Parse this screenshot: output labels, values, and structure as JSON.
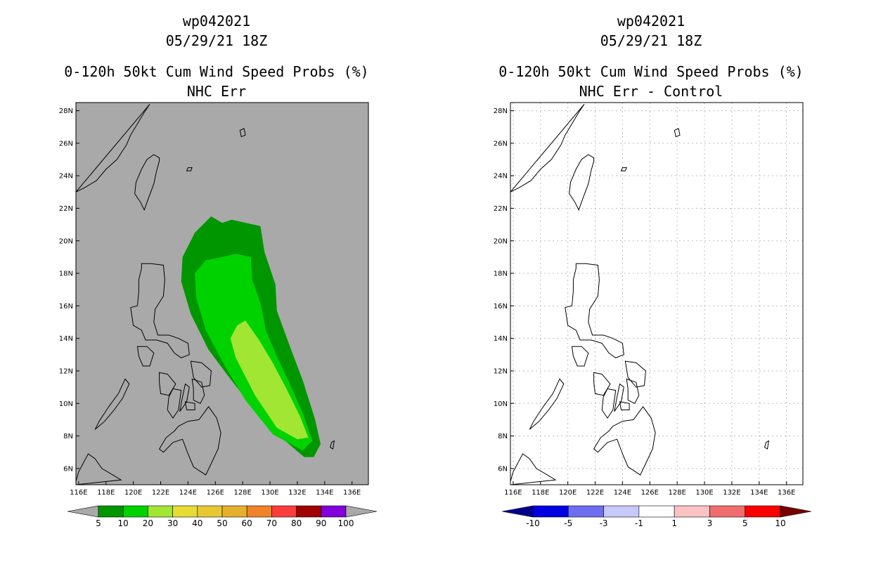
{
  "chart_data": [
    {
      "type": "map",
      "title": [
        "wp042021",
        "05/29/21 18Z",
        "0-120h 50kt Cum Wind Speed Probs (%)",
        "NHC Err"
      ],
      "xlabel": "",
      "ylabel": "",
      "xlim": [
        115.8,
        137.2
      ],
      "ylim": [
        5.0,
        28.5
      ],
      "background": "#a9a9a9",
      "x_ticks": [
        "116E",
        "118E",
        "120E",
        "122E",
        "124E",
        "126E",
        "128E",
        "130E",
        "132E",
        "134E",
        "136E"
      ],
      "y_ticks": [
        "6N",
        "8N",
        "10N",
        "12N",
        "14N",
        "16N",
        "18N",
        "20N",
        "22N",
        "24N",
        "26N",
        "28N"
      ],
      "grid": false,
      "probability_contours": [
        {
          "level": 5,
          "color": "#009600",
          "outline": [
            [
              125.7,
              21.5
            ],
            [
              126.5,
              21.1
            ],
            [
              127.2,
              21.3
            ],
            [
              129.3,
              20.9
            ],
            [
              129.6,
              19.3
            ],
            [
              130.4,
              17.3
            ],
            [
              130.5,
              15.7
            ],
            [
              131.5,
              13.4
            ],
            [
              132.4,
              11.4
            ],
            [
              133.3,
              9.0
            ],
            [
              133.7,
              7.5
            ],
            [
              133.2,
              6.7
            ],
            [
              132.5,
              6.7
            ],
            [
              129.7,
              8.7
            ],
            [
              127.1,
              11.5
            ],
            [
              125.5,
              13.3
            ],
            [
              124.2,
              15.5
            ],
            [
              123.5,
              17.5
            ],
            [
              123.6,
              19.0
            ],
            [
              124.5,
              20.5
            ]
          ]
        },
        {
          "level": 10,
          "color": "#00d200",
          "outline": [
            [
              124.5,
              18.0
            ],
            [
              125.3,
              18.8
            ],
            [
              126.5,
              19.0
            ],
            [
              127.5,
              19.2
            ],
            [
              128.6,
              19.0
            ],
            [
              128.7,
              17.6
            ],
            [
              129.3,
              16.2
            ],
            [
              129.7,
              14.5
            ],
            [
              130.5,
              12.9
            ],
            [
              131.4,
              11.3
            ],
            [
              132.4,
              9.4
            ],
            [
              133.1,
              7.7
            ],
            [
              132.4,
              7.1
            ],
            [
              130.2,
              8.1
            ],
            [
              128.2,
              10.2
            ],
            [
              126.7,
              12.3
            ],
            [
              125.3,
              14.5
            ],
            [
              124.6,
              16.5
            ]
          ]
        },
        {
          "level": 20,
          "color": "#a0e632",
          "outline": [
            [
              127.6,
              14.8
            ],
            [
              128.2,
              15.1
            ],
            [
              129.2,
              13.9
            ],
            [
              130.2,
              12.5
            ],
            [
              131.2,
              10.9
            ],
            [
              132.2,
              9.2
            ],
            [
              132.8,
              7.9
            ],
            [
              132.0,
              7.8
            ],
            [
              130.5,
              8.5
            ],
            [
              128.9,
              10.5
            ],
            [
              127.5,
              12.8
            ],
            [
              127.1,
              14.0
            ]
          ]
        }
      ],
      "colorbar": {
        "labels": [
          "5",
          "10",
          "20",
          "30",
          "40",
          "50",
          "60",
          "70",
          "80",
          "90",
          "100"
        ],
        "colors": [
          "#009600",
          "#00d200",
          "#a0e632",
          "#e6dc32",
          "#e6c832",
          "#e6af2d",
          "#f08228",
          "#fa3c3c",
          "#a00000",
          "#8200dc"
        ],
        "under_color": "#a9a9a9",
        "over_color": "#a9a9a9"
      }
    },
    {
      "type": "map",
      "title": [
        "wp042021",
        "05/29/21 18Z",
        "0-120h 50kt Cum Wind Speed Probs (%)",
        "NHC Err - Control"
      ],
      "xlabel": "",
      "ylabel": "",
      "xlim": [
        115.8,
        137.2
      ],
      "ylim": [
        5.0,
        28.5
      ],
      "background": "#ffffff",
      "x_ticks": [
        "116E",
        "118E",
        "120E",
        "122E",
        "124E",
        "126E",
        "128E",
        "130E",
        "132E",
        "134E",
        "136E"
      ],
      "y_ticks": [
        "6N",
        "8N",
        "10N",
        "12N",
        "14N",
        "16N",
        "18N",
        "20N",
        "22N",
        "24N",
        "26N",
        "28N"
      ],
      "grid": true,
      "colorbar": {
        "labels": [
          "-10",
          "-5",
          "-3",
          "-1",
          "1",
          "3",
          "5",
          "10"
        ],
        "colors": [
          "#0000e1",
          "#6e6ef0",
          "#c8c8fa",
          "#ffffff",
          "#fac3c3",
          "#f06e6e",
          "#fa0000"
        ],
        "under_color": "#00008c",
        "over_color": "#780000"
      }
    }
  ]
}
